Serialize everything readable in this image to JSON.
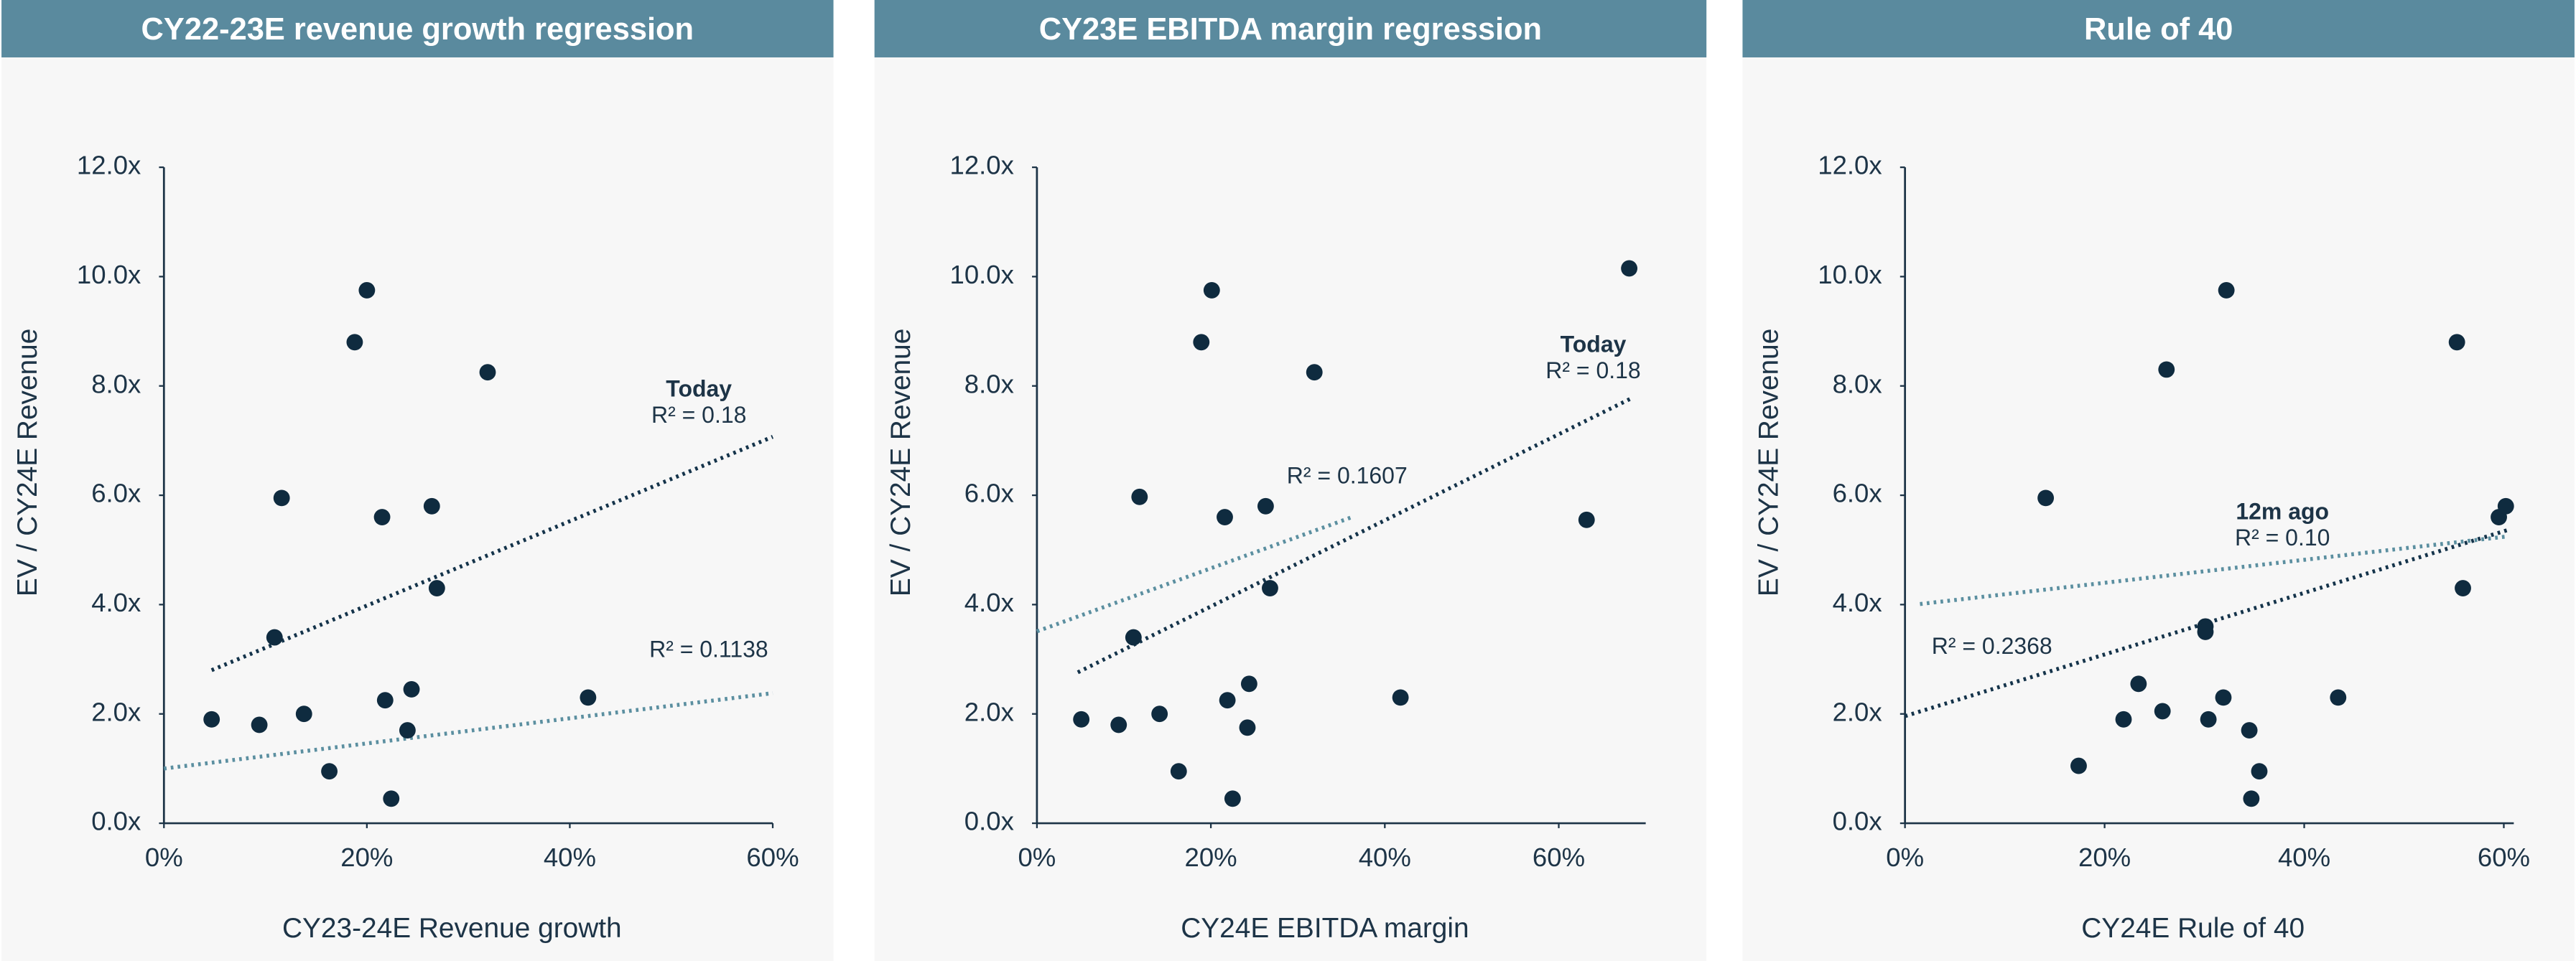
{
  "chart_data": [
    {
      "type": "scatter",
      "title": "CY22-23E revenue growth regression",
      "x_label": "CY23-24E Revenue growth",
      "y_label": "EV / CY24E Revenue",
      "color": "#0f2b3f",
      "x": [
        4.7,
        9.4,
        10.9,
        11.6,
        13.8,
        16.3,
        18.8,
        20.0,
        21.5,
        21.8,
        22.4,
        24.0,
        24.4,
        26.4,
        26.9,
        31.9,
        41.8
      ],
      "values": [
        1.9,
        1.8,
        3.4,
        5.95,
        2.0,
        0.95,
        8.8,
        9.75,
        5.6,
        2.25,
        0.45,
        1.7,
        2.45,
        5.8,
        4.3,
        8.25,
        2.3
      ],
      "xlim": [
        0,
        60
      ],
      "xticks": [
        {
          "value": 0,
          "label": "0%"
        },
        {
          "value": 20,
          "label": "20%"
        },
        {
          "value": 40,
          "label": "40%"
        },
        {
          "value": 60,
          "label": "60%"
        }
      ],
      "ylim": [
        0,
        12
      ],
      "yticks": [
        {
          "value": 0,
          "label": "0.0x"
        },
        {
          "value": 2,
          "label": "2.0x"
        },
        {
          "value": 4,
          "label": "4.0x"
        },
        {
          "value": 6,
          "label": "6.0x"
        },
        {
          "value": 8,
          "label": "8.0x"
        },
        {
          "value": 10,
          "label": "10.0x"
        },
        {
          "value": 12,
          "label": "12.0x"
        }
      ],
      "trendlines": [
        {
          "color": "#14334a",
          "x": [
            4.7,
            60
          ],
          "y": [
            2.8,
            7.07
          ]
        },
        {
          "color": "#5b8fa0",
          "x": [
            0,
            60
          ],
          "y": [
            1.0,
            2.38
          ]
        }
      ],
      "annotations": [
        "Today",
        "R² = 0.18",
        "R² = 0.1138"
      ]
    },
    {
      "type": "scatter",
      "title": "CY23E EBITDA margin regression",
      "x_label": "CY24E EBITDA margin",
      "y_label": "EV / CY24E Revenue",
      "color": "#0f2b3f",
      "x": [
        5.1,
        9.4,
        11.1,
        11.8,
        14.1,
        16.3,
        18.9,
        20.1,
        21.6,
        21.9,
        22.5,
        24.2,
        24.4,
        26.3,
        26.8,
        31.9,
        41.8,
        63.2,
        68.1
      ],
      "values": [
        1.9,
        1.8,
        3.4,
        5.97,
        2.0,
        0.95,
        8.8,
        9.75,
        5.6,
        2.25,
        0.45,
        1.75,
        2.55,
        5.8,
        4.3,
        8.25,
        2.3,
        5.55,
        10.15
      ],
      "xlim": [
        0,
        70
      ],
      "xticks": [
        {
          "value": 0,
          "label": "0%"
        },
        {
          "value": 20,
          "label": "20%"
        },
        {
          "value": 40,
          "label": "40%"
        },
        {
          "value": 60,
          "label": "60%"
        }
      ],
      "ylim": [
        0,
        12
      ],
      "yticks": [
        {
          "value": 0,
          "label": "0.0x"
        },
        {
          "value": 2,
          "label": "2.0x"
        },
        {
          "value": 4,
          "label": "4.0x"
        },
        {
          "value": 6,
          "label": "6.0x"
        },
        {
          "value": 8,
          "label": "8.0x"
        },
        {
          "value": 10,
          "label": "10.0x"
        },
        {
          "value": 12,
          "label": "12.0x"
        }
      ],
      "trendlines": [
        {
          "color": "#14334a",
          "x": [
            4.7,
            68.3
          ],
          "y": [
            2.76,
            7.77
          ]
        },
        {
          "color": "#5b8fa0",
          "x": [
            0,
            36.4
          ],
          "y": [
            3.51,
            5.61
          ]
        }
      ],
      "annotations": [
        "Today",
        "R² = 0.18",
        "R² = 0.1607"
      ]
    },
    {
      "type": "scatter",
      "title": "Rule of 40",
      "x_label": "CY24E Rule of 40",
      "y_label": "EV / CY24E Revenue",
      "color": "#0f2b3f",
      "x": [
        17.4,
        14.1,
        21.9,
        23.4,
        25.8,
        26.2,
        30.1,
        30.1,
        30.4,
        31.9,
        32.2,
        34.5,
        34.7,
        35.5,
        43.4,
        55.3,
        55.9,
        59.5,
        60.2
      ],
      "values": [
        1.05,
        5.95,
        1.9,
        2.55,
        2.05,
        8.3,
        3.6,
        3.5,
        1.9,
        2.3,
        9.75,
        1.7,
        0.45,
        0.95,
        2.3,
        8.8,
        4.3,
        5.6,
        5.8
      ],
      "xlim": [
        0,
        61
      ],
      "xticks": [
        {
          "value": 0,
          "label": "0%"
        },
        {
          "value": 20,
          "label": "20%"
        },
        {
          "value": 40,
          "label": "40%"
        },
        {
          "value": 60,
          "label": "60%"
        }
      ],
      "ylim": [
        0,
        12
      ],
      "yticks": [
        {
          "value": 0,
          "label": "0.0x"
        },
        {
          "value": 2,
          "label": "2.0x"
        },
        {
          "value": 4,
          "label": "4.0x"
        },
        {
          "value": 6,
          "label": "6.0x"
        },
        {
          "value": 8,
          "label": "8.0x"
        },
        {
          "value": 10,
          "label": "10.0x"
        },
        {
          "value": 12,
          "label": "12.0x"
        }
      ],
      "trendlines": [
        {
          "color": "#14334a",
          "x": [
            0,
            60.5
          ],
          "y": [
            1.96,
            5.37
          ]
        },
        {
          "color": "#5b8fa0",
          "x": [
            1.5,
            60.5
          ],
          "y": [
            4.01,
            5.25
          ]
        }
      ],
      "annotations": [
        "12m ago",
        "R² = 0.10",
        "R² = 0.2368"
      ]
    }
  ]
}
